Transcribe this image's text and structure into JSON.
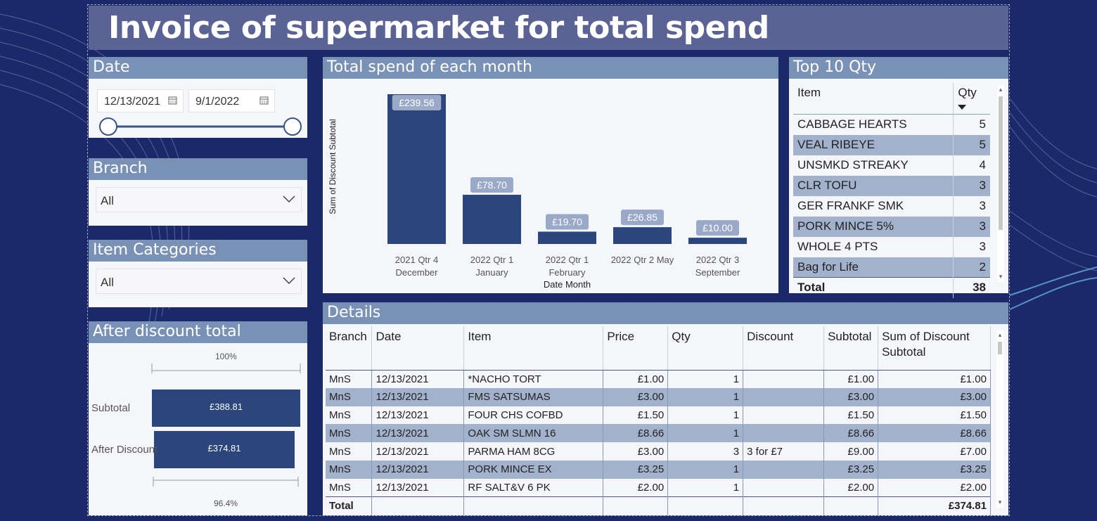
{
  "title": "Invoice of supermarket for total spend",
  "date_slicer": {
    "header": "Date",
    "start": "12/13/2021",
    "end": "9/1/2022"
  },
  "branch_slicer": {
    "header": "Branch",
    "value": "All"
  },
  "category_slicer": {
    "header": "Item Categories",
    "value": "All"
  },
  "after_discount": {
    "header": "After discount total",
    "max_label": "100%",
    "min_label": "96.4%",
    "rows": [
      {
        "label": "Subtotal",
        "value": "£388.81"
      },
      {
        "label": "After Discount",
        "value": "£374.81"
      }
    ],
    "fractions": [
      1.0,
      0.964
    ]
  },
  "monthly_chart": {
    "header": "Total spend of each month"
  },
  "chart_data": {
    "type": "bar",
    "categories": [
      [
        "2021 Qtr 4",
        "December"
      ],
      [
        "2022 Qtr 1",
        "January"
      ],
      [
        "2022 Qtr 1",
        "February"
      ],
      [
        "2022 Qtr 2 May"
      ],
      [
        "2022 Qtr 3",
        "September"
      ]
    ],
    "values": [
      239.56,
      78.7,
      19.7,
      26.85,
      10.0
    ],
    "data_labels": [
      "£239.56",
      "£78.70",
      "£19.70",
      "£26.85",
      "£10.00"
    ],
    "xlabel": "Date Month",
    "ylabel": "Sum of Discount Subtotal",
    "ylim": [
      0,
      239.56
    ],
    "grid": false,
    "bar_color": "#2b467d"
  },
  "top10": {
    "header": "Top 10 Qty",
    "columns": [
      "Item",
      "Qty"
    ],
    "rows": [
      {
        "item": "CABBAGE HEARTS",
        "qty": "5"
      },
      {
        "item": "VEAL RIBEYE",
        "qty": "5"
      },
      {
        "item": "UNSMKD STREAKY",
        "qty": "4"
      },
      {
        "item": "CLR TOFU",
        "qty": "3"
      },
      {
        "item": "GER FRANKF SMK",
        "qty": "3"
      },
      {
        "item": "PORK MINCE 5%",
        "qty": "3"
      },
      {
        "item": "WHOLE 4 PTS",
        "qty": "3"
      },
      {
        "item": "Bag for Life",
        "qty": "2"
      }
    ],
    "total_label": "Total",
    "total": "38"
  },
  "details": {
    "header": "Details",
    "columns": [
      "Branch",
      "Date",
      "Item",
      "Price",
      "Qty",
      "Discount",
      "Subtotal",
      "Sum of Discount Subtotal"
    ],
    "rows": [
      [
        "MnS",
        "12/13/2021",
        "*NACHO TORT",
        "£1.00",
        "1",
        "",
        "£1.00",
        "£1.00"
      ],
      [
        "MnS",
        "12/13/2021",
        "FMS SATSUMAS",
        "£3.00",
        "1",
        "",
        "£3.00",
        "£3.00"
      ],
      [
        "MnS",
        "12/13/2021",
        "FOUR CHS COFBD",
        "£1.50",
        "1",
        "",
        "£1.50",
        "£1.50"
      ],
      [
        "MnS",
        "12/13/2021",
        "OAK SM SLMN 16",
        "£8.66",
        "1",
        "",
        "£8.66",
        "£8.66"
      ],
      [
        "MnS",
        "12/13/2021",
        "PARMA HAM 8CG",
        "£3.00",
        "3",
        "3 for £7",
        "£9.00",
        "£7.00"
      ],
      [
        "MnS",
        "12/13/2021",
        "PORK MINCE EX",
        "£3.25",
        "1",
        "",
        "£3.25",
        "£3.25"
      ],
      [
        "MnS",
        "12/13/2021",
        "RF SALT&V 6 PK",
        "£2.00",
        "1",
        "",
        "£2.00",
        "£2.00"
      ]
    ],
    "total_label": "Total",
    "total": "£374.81"
  },
  "colors": {
    "background": "#1b2869",
    "title_bar": "#5a6394",
    "panel_header": "#7891b5",
    "bar": "#2b467d",
    "row_alt": "#a3b2cc"
  }
}
